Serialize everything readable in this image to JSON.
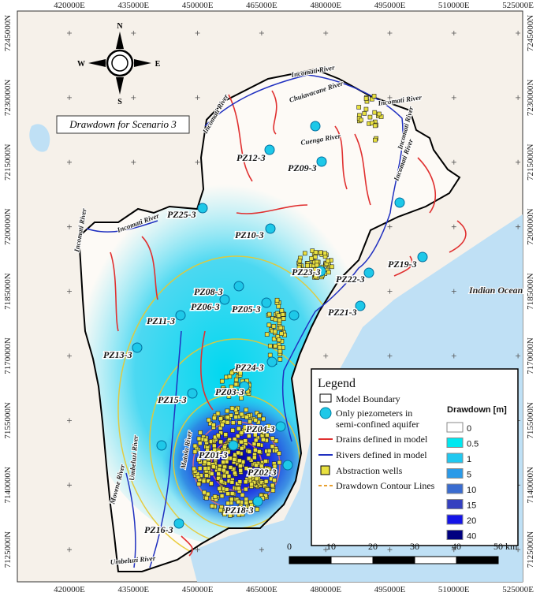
{
  "map": {
    "title": "Drawdown for Scenario 3",
    "compass": [
      "N",
      "E",
      "S",
      "W"
    ],
    "eastings": [
      "420000E",
      "435000E",
      "450000E",
      "465000E",
      "480000E",
      "495000E",
      "510000E",
      "525000E"
    ],
    "northings": [
      "7245000N",
      "7230000N",
      "7215000N",
      "7200000N",
      "7185000N",
      "7170000N",
      "7155000N",
      "7140000N",
      "7125000N"
    ],
    "piezometers": [
      "PZ12-3",
      "PZ09-3",
      "PZ25-3",
      "PZ10-3",
      "PZ19-3",
      "PZ23-3",
      "PZ22-3",
      "PZ08-3",
      "PZ06-3",
      "PZ05-3",
      "PZ21-3",
      "PZ11-3",
      "PZ13-3",
      "PZ24-3",
      "PZ15-3",
      "PZ03-3",
      "PZ04-3",
      "PZ01-3",
      "PZ02-3",
      "PZ18-3",
      "PZ16-3"
    ],
    "rivers": [
      "Incomati River",
      "Chuiavacane River",
      "Incomati River",
      "Cuenga River",
      "Incomati River",
      "Incomati River",
      "Incomati River",
      "Incomati River",
      "Incomati River",
      "Matola River",
      "Movene River",
      "Umbeluzi River",
      "Umbeluzi River"
    ],
    "sea": "Indian Ocean",
    "legend": {
      "title": "Legend",
      "items": [
        "Model Boundary",
        "Only piezometers in",
        "semi-confined aquifer",
        "Drains defined in model",
        "Rivers defined in model",
        "Abstraction wells",
        "Drawdown Contour Lines"
      ],
      "drawdown_title": "Drawdown [m]",
      "drawdown_classes": [
        0,
        0.5,
        1,
        5,
        10,
        15,
        20,
        40
      ],
      "drawdown_colors": [
        "#ffffff",
        "#00e8f0",
        "#20c8f0",
        "#2a9ae8",
        "#3a6cd0",
        "#3440c0",
        "#1414e8",
        "#000080"
      ]
    },
    "scale": {
      "ticks": [
        0,
        10,
        20,
        30,
        40,
        {
          "value": 50,
          "label": "50 km"
        }
      ]
    }
  }
}
